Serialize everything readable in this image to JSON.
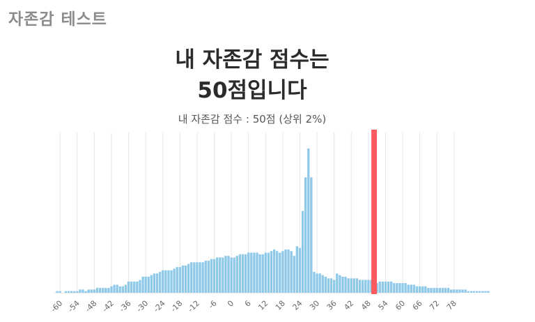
{
  "app": {
    "title": "자존감 테스트"
  },
  "result": {
    "headline_line1": "내 자존감 점수는",
    "headline_line2": "50점입니다",
    "subtitle": "내 자존감 점수 :  50점 (상위 2%)"
  },
  "colors": {
    "bar": "#8ec9ea",
    "marker": "#ff5a5f",
    "grid": "#e6e6e6"
  },
  "chart_data": {
    "type": "bar",
    "x_start": -61,
    "x_step": 1,
    "values": [
      1,
      1,
      0,
      1,
      1,
      1,
      1,
      1,
      2,
      2,
      1,
      2,
      2,
      2,
      3,
      3,
      3,
      3,
      3,
      4,
      5,
      5,
      4,
      4,
      5,
      7,
      7,
      7,
      7,
      8,
      10,
      10,
      10,
      11,
      12,
      12,
      13,
      14,
      14,
      14,
      14,
      15,
      16,
      16,
      17,
      17,
      18,
      19,
      19,
      19,
      19,
      19,
      20,
      20,
      21,
      21,
      22,
      22,
      22,
      23,
      23,
      22,
      22,
      23,
      24,
      24,
      24,
      25,
      25,
      25,
      25,
      24,
      24,
      25,
      25,
      26,
      27,
      26,
      25,
      26,
      27,
      27,
      26,
      23,
      29,
      28,
      51,
      72,
      90,
      72,
      13,
      12,
      12,
      11,
      10,
      9,
      9,
      8,
      12,
      11,
      10,
      10,
      9,
      9,
      9,
      9,
      8,
      8,
      8,
      8,
      8,
      8,
      6,
      7,
      7,
      7,
      7,
      7,
      6,
      6,
      6,
      6,
      6,
      5,
      5,
      5,
      4,
      4,
      4,
      4,
      3,
      3,
      3,
      3,
      3,
      3,
      3,
      3,
      2,
      2,
      2,
      2,
      2,
      2,
      1,
      1,
      1,
      1,
      1,
      1,
      1,
      1
    ],
    "xlim": [
      -62,
      80
    ],
    "ylim": [
      0,
      100
    ],
    "x_ticks": [
      -60,
      -54,
      -48,
      -42,
      -36,
      -30,
      -24,
      -18,
      -12,
      -6,
      0,
      6,
      12,
      18,
      24,
      30,
      36,
      42,
      48,
      54,
      60,
      66,
      72,
      78
    ],
    "grid_x": true,
    "grid_y": false,
    "marker_value": 50
  }
}
